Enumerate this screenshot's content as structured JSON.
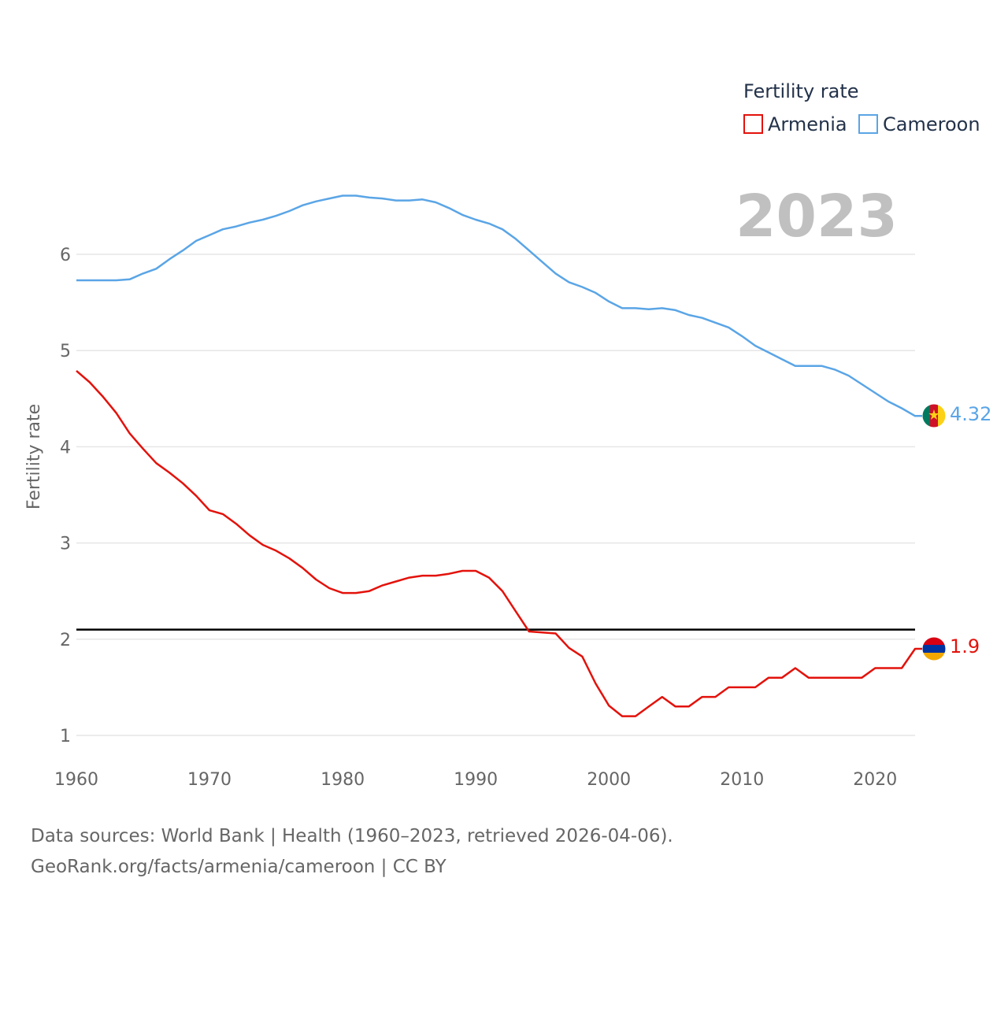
{
  "chart_data": {
    "type": "line",
    "title": "",
    "xlabel": "",
    "ylabel": "Fertility rate",
    "xlim": [
      1960,
      2023
    ],
    "ylim": [
      0.9,
      6.9
    ],
    "x_ticks": [
      1960,
      1970,
      1980,
      1990,
      2000,
      2010,
      2020
    ],
    "y_ticks": [
      1,
      2,
      3,
      4,
      5,
      6
    ],
    "grid": true,
    "legend": {
      "title": "Fertility rate",
      "position": "top-right",
      "entries": [
        "Armenia",
        "Cameroon"
      ]
    },
    "year_display": "2023",
    "reference_line": {
      "value": 2.1,
      "color": "#000000"
    },
    "x": [
      1960,
      1961,
      1962,
      1963,
      1964,
      1965,
      1966,
      1967,
      1968,
      1969,
      1970,
      1971,
      1972,
      1973,
      1974,
      1975,
      1976,
      1977,
      1978,
      1979,
      1980,
      1981,
      1982,
      1983,
      1984,
      1985,
      1986,
      1987,
      1988,
      1989,
      1990,
      1991,
      1992,
      1993,
      1994,
      1995,
      1996,
      1997,
      1998,
      1999,
      2000,
      2001,
      2002,
      2003,
      2004,
      2005,
      2006,
      2007,
      2008,
      2009,
      2010,
      2011,
      2012,
      2013,
      2014,
      2015,
      2016,
      2017,
      2018,
      2019,
      2020,
      2021,
      2022,
      2023
    ],
    "series": [
      {
        "name": "Armenia",
        "color": "#e3120b",
        "end_label": "1.9",
        "flag": "armenia-flag",
        "values": [
          4.79,
          4.67,
          4.52,
          4.35,
          4.14,
          3.98,
          3.83,
          3.73,
          3.62,
          3.49,
          3.34,
          3.3,
          3.2,
          3.08,
          2.98,
          2.92,
          2.84,
          2.74,
          2.62,
          2.53,
          2.48,
          2.48,
          2.5,
          2.56,
          2.6,
          2.64,
          2.66,
          2.66,
          2.68,
          2.71,
          2.71,
          2.64,
          2.5,
          2.29,
          2.08,
          2.07,
          2.06,
          1.91,
          1.82,
          1.54,
          1.31,
          1.2,
          1.2,
          1.3,
          1.4,
          1.3,
          1.3,
          1.4,
          1.4,
          1.5,
          1.5,
          1.5,
          1.6,
          1.6,
          1.7,
          1.6,
          1.6,
          1.6,
          1.6,
          1.6,
          1.7,
          1.7,
          1.7,
          1.9
        ]
      },
      {
        "name": "Cameroon",
        "color": "#5aa5e6",
        "end_label": "4.32",
        "flag": "cameroon-flag",
        "values": [
          5.73,
          5.73,
          5.73,
          5.73,
          5.74,
          5.8,
          5.85,
          5.95,
          6.04,
          6.14,
          6.2,
          6.26,
          6.29,
          6.33,
          6.36,
          6.4,
          6.45,
          6.51,
          6.55,
          6.58,
          6.61,
          6.61,
          6.59,
          6.58,
          6.56,
          6.56,
          6.57,
          6.54,
          6.48,
          6.41,
          6.36,
          6.32,
          6.26,
          6.16,
          6.04,
          5.92,
          5.8,
          5.71,
          5.66,
          5.6,
          5.51,
          5.44,
          5.44,
          5.43,
          5.44,
          5.42,
          5.37,
          5.34,
          5.29,
          5.24,
          5.15,
          5.05,
          4.98,
          4.91,
          4.84,
          4.84,
          4.84,
          4.8,
          4.74,
          4.65,
          4.56,
          4.47,
          4.4,
          4.32
        ]
      }
    ]
  },
  "footer": {
    "source_line": "Data sources: World Bank | Health (1960–2023, retrieved 2026-04-06).",
    "url_line": "GeoRank.org/facts/armenia/cameroon | CC BY"
  }
}
